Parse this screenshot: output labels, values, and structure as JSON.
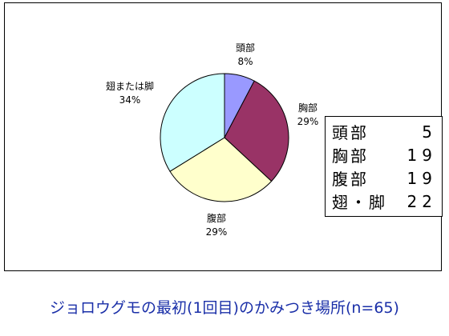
{
  "chart_data": {
    "type": "pie",
    "caption": "ジョロウグモの最初(1回目)のかみつき場所(n=65)",
    "categories": [
      "頭部",
      "胸部",
      "腹部",
      "翅または脚"
    ],
    "values": [
      5,
      19,
      19,
      22
    ],
    "percent_labels": [
      "8%",
      "29%",
      "29%",
      "34%"
    ],
    "colors": [
      "#9999ff",
      "#993366",
      "#ffffcc",
      "#ccffff"
    ],
    "legend": "none"
  },
  "count_table": {
    "rows": [
      {
        "label": "頭部",
        "value": "5"
      },
      {
        "label": "胸部",
        "value": "19"
      },
      {
        "label": "腹部",
        "value": "19"
      },
      {
        "label": "翅・脚",
        "value": "22"
      }
    ]
  }
}
